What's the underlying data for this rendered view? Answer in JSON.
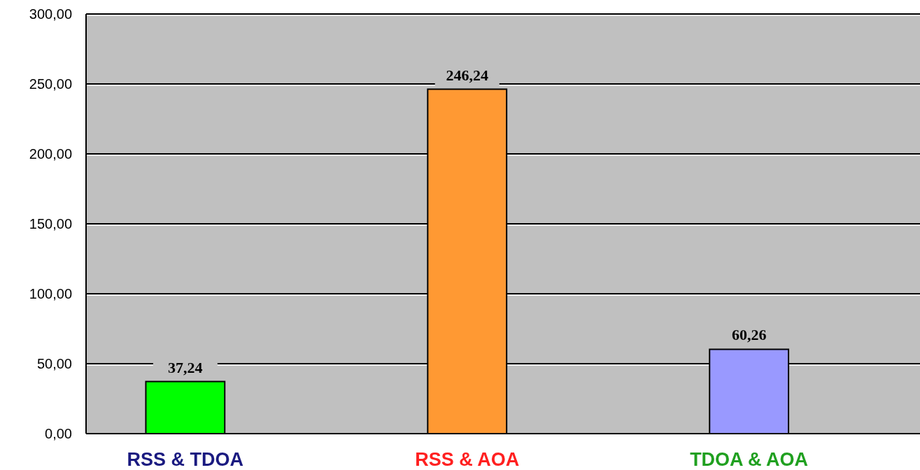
{
  "chart_data": {
    "type": "bar",
    "categories": [
      "RSS & TDOA",
      "RSS & AOA",
      "TDOA & AOA"
    ],
    "values": [
      37.24,
      246.24,
      60.26
    ],
    "colors": [
      "#00ff00",
      "#ff9933",
      "#9999ff"
    ],
    "value_labels": [
      "37,24",
      "246,24",
      "60,26"
    ],
    "ylim": [
      0,
      300
    ],
    "yticks": [
      {
        "value": 0,
        "label": "0,00"
      },
      {
        "value": 50,
        "label": "50,00"
      },
      {
        "value": 100,
        "label": "100,00"
      },
      {
        "value": 150,
        "label": "150,00"
      },
      {
        "value": 200,
        "label": "200,00"
      },
      {
        "value": 250,
        "label": "250,00"
      },
      {
        "value": 300,
        "label": "300,00"
      }
    ],
    "grid": "y"
  }
}
